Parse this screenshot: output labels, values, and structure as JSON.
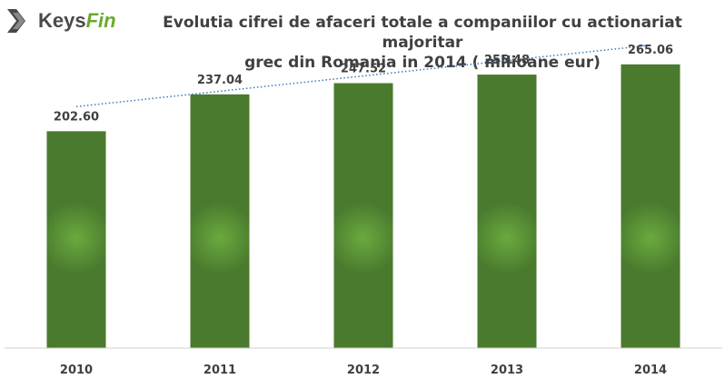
{
  "logo": {
    "keys": "Keys",
    "fin": "Fin",
    "mark_color": "#4a4a4a",
    "accent_color": "#6aaa2e"
  },
  "chart_data": {
    "type": "bar",
    "title_line1": "Evolutia cifrei de afaceri totale a companiilor cu actionariat majoritar",
    "title_line2": "grec  din Romania in 2014 ( milioane eur)",
    "categories": [
      "2010",
      "2011",
      "2012",
      "2013",
      "2014"
    ],
    "series": [
      {
        "values": [
          202.6,
          237.04,
          247.52,
          255.48,
          265.06
        ],
        "data_labels": [
          "202.60",
          "237.04",
          "247.52",
          "255.48",
          "265.06"
        ],
        "color": "#4a7a2e",
        "highlight_color": "#6aaa3e"
      }
    ],
    "trendline": {
      "type": "linear",
      "style": "dotted",
      "color": "#3a7abf"
    },
    "ylim": [
      0,
      270
    ],
    "grid": false,
    "legend": "none",
    "xlabel": "",
    "ylabel": ""
  }
}
